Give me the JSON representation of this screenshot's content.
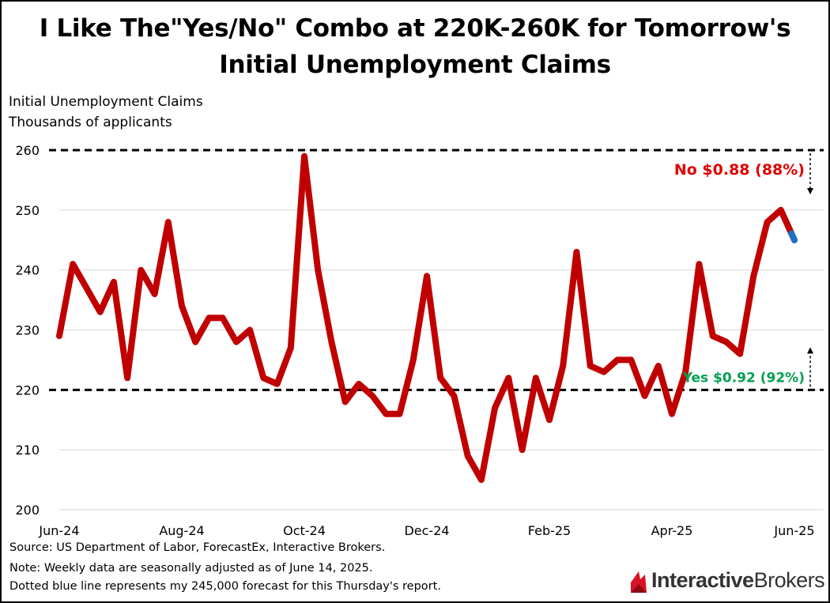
{
  "title_line1": "I Like The\"Yes/No\" Combo at 220K-260K for Tomorrow's",
  "title_line2": "Initial Unemployment Claims",
  "ylabel_line1": "Initial Unemployment Claims",
  "ylabel_line2": "Thousands of applicants",
  "notes": [
    "Source: US Department of Labor, ForecastEx, Interactive Brokers.",
    "Note: Weekly data are seasonally adjusted as of June 14, 2025.",
    "Dotted blue line represents my 245,000 forecast for this Thursday's report."
  ],
  "logo": {
    "part1": "Interactive",
    "part2": "Brokers",
    "icon": "interactive-brokers-flame-icon",
    "color": "#d81222"
  },
  "chart_data": {
    "type": "line",
    "title": "I Like The\"Yes/No\" Combo at 220K-260K for Tomorrow's Initial Unemployment Claims",
    "ylabel": "Initial Unemployment Claims, Thousands of applicants",
    "ylim": [
      200,
      260
    ],
    "yticks": [
      200,
      210,
      220,
      230,
      240,
      250,
      260
    ],
    "x_ticks": [
      "Jun-24",
      "Aug-24",
      "Oct-24",
      "Dec-24",
      "Feb-25",
      "Apr-25",
      "Jun-25"
    ],
    "grid": "horizontal",
    "series": [
      {
        "color": "#c00000",
        "values": [
          229,
          241,
          237,
          233,
          238,
          222,
          240,
          236,
          248,
          234,
          228,
          232,
          232,
          228,
          230,
          222,
          221,
          227,
          259,
          240,
          228,
          218,
          221,
          219,
          216,
          216,
          225,
          239,
          222,
          219,
          209,
          205,
          217,
          222,
          210,
          222,
          215,
          224,
          243,
          224,
          223,
          225,
          225,
          219,
          224,
          216,
          223,
          241,
          229,
          228,
          226,
          239,
          248,
          250,
          245
        ]
      },
      {
        "color": "#1f6fc5",
        "values": [
          250,
          245
        ]
      }
    ],
    "reference_lines": [
      {
        "y": 260,
        "style": "dashed",
        "color": "#000000"
      },
      {
        "y": 220,
        "style": "dashed",
        "color": "#000000"
      }
    ],
    "annotations": [
      {
        "text": "No $0.88 (88%)",
        "color": "#e00000",
        "arrow": "down-from-260"
      },
      {
        "text": "Yes $0.92 (92%)",
        "color": "#00a050",
        "arrow": "up-from-220"
      }
    ]
  }
}
